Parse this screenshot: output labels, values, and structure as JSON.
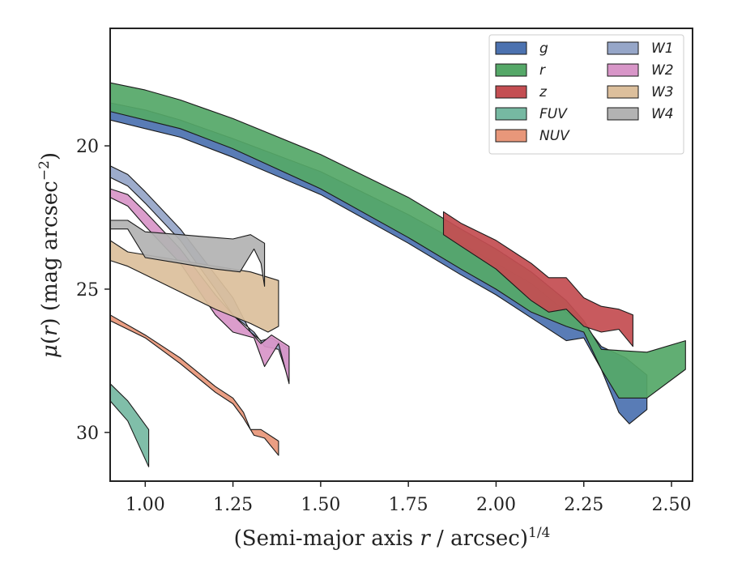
{
  "chart_data": {
    "type": "area",
    "xlabel": "(Semi-major axis r / arcsec)^{1/4}",
    "ylabel": "μ(r) (mag arcsec^{−2})",
    "xlim": [
      0.9,
      2.56
    ],
    "ylim": [
      31.7,
      15.9
    ],
    "y_inverted": true,
    "grid": false,
    "legend_placement": "top-right",
    "legend_columns": 2,
    "xticks": [
      "1.00",
      "1.25",
      "1.50",
      "1.75",
      "2.00",
      "2.25",
      "2.50"
    ],
    "xtick_values": [
      1.0,
      1.25,
      1.5,
      1.75,
      2.0,
      2.25,
      2.5
    ],
    "yticks": [
      "20",
      "25",
      "30"
    ],
    "ytick_values": [
      20,
      25,
      30
    ],
    "series": [
      {
        "name": "g",
        "color": "#4c72b0",
        "upper": [
          [
            0.9,
            18.5
          ],
          [
            1.0,
            18.75
          ],
          [
            1.1,
            19.1
          ],
          [
            1.25,
            19.75
          ],
          [
            1.5,
            20.9
          ],
          [
            1.75,
            22.4
          ],
          [
            1.9,
            23.4
          ],
          [
            2.0,
            24.1
          ],
          [
            2.1,
            24.8
          ],
          [
            2.2,
            25.8
          ],
          [
            2.25,
            26.2
          ],
          [
            2.3,
            27.0
          ],
          [
            2.37,
            27.4
          ],
          [
            2.43,
            28.0
          ]
        ],
        "lower": [
          [
            2.43,
            29.2
          ],
          [
            2.38,
            29.7
          ],
          [
            2.35,
            29.3
          ],
          [
            2.3,
            27.8
          ],
          [
            2.25,
            26.7
          ],
          [
            2.2,
            26.8
          ],
          [
            2.1,
            26.0
          ],
          [
            2.0,
            25.2
          ],
          [
            1.9,
            24.5
          ],
          [
            1.75,
            23.4
          ],
          [
            1.5,
            21.7
          ],
          [
            1.25,
            20.4
          ],
          [
            1.1,
            19.7
          ],
          [
            1.0,
            19.4
          ],
          [
            0.9,
            19.1
          ]
        ]
      },
      {
        "name": "r",
        "color": "#55a868",
        "upper": [
          [
            0.9,
            17.8
          ],
          [
            1.0,
            18.05
          ],
          [
            1.1,
            18.4
          ],
          [
            1.25,
            19.05
          ],
          [
            1.5,
            20.3
          ],
          [
            1.75,
            21.8
          ],
          [
            1.9,
            22.9
          ],
          [
            2.0,
            23.6
          ],
          [
            2.1,
            24.4
          ],
          [
            2.2,
            25.4
          ],
          [
            2.25,
            26.1
          ],
          [
            2.3,
            27.1
          ],
          [
            2.43,
            27.2
          ],
          [
            2.54,
            26.8
          ]
        ],
        "lower": [
          [
            2.54,
            27.8
          ],
          [
            2.43,
            28.8
          ],
          [
            2.35,
            28.8
          ],
          [
            2.3,
            27.8
          ],
          [
            2.25,
            26.5
          ],
          [
            2.2,
            26.3
          ],
          [
            2.1,
            25.8
          ],
          [
            2.0,
            25.0
          ],
          [
            1.9,
            24.3
          ],
          [
            1.75,
            23.2
          ],
          [
            1.5,
            21.5
          ],
          [
            1.25,
            20.1
          ],
          [
            1.1,
            19.4
          ],
          [
            1.0,
            19.1
          ],
          [
            0.9,
            18.8
          ]
        ]
      },
      {
        "name": "z",
        "color": "#c44e52",
        "upper": [
          [
            1.85,
            22.3
          ],
          [
            1.9,
            22.7
          ],
          [
            2.0,
            23.3
          ],
          [
            2.1,
            24.1
          ],
          [
            2.15,
            24.6
          ],
          [
            2.2,
            24.6
          ],
          [
            2.25,
            25.3
          ],
          [
            2.3,
            25.6
          ],
          [
            2.35,
            25.7
          ],
          [
            2.39,
            25.9
          ]
        ],
        "lower": [
          [
            2.39,
            27.0
          ],
          [
            2.35,
            26.4
          ],
          [
            2.3,
            26.5
          ],
          [
            2.25,
            26.3
          ],
          [
            2.2,
            25.7
          ],
          [
            2.15,
            25.8
          ],
          [
            2.1,
            25.4
          ],
          [
            2.0,
            24.3
          ],
          [
            1.9,
            23.5
          ],
          [
            1.85,
            23.1
          ]
        ]
      },
      {
        "name": "FUV",
        "color": "#76b9a2",
        "upper": [
          [
            0.9,
            28.3
          ],
          [
            0.95,
            28.9
          ],
          [
            1.01,
            29.9
          ]
        ],
        "lower": [
          [
            1.01,
            31.2
          ],
          [
            0.95,
            29.6
          ],
          [
            0.9,
            28.9
          ]
        ]
      },
      {
        "name": "NUV",
        "color": "#e8977a",
        "upper": [
          [
            0.9,
            25.9
          ],
          [
            1.0,
            26.6
          ],
          [
            1.1,
            27.4
          ],
          [
            1.2,
            28.4
          ],
          [
            1.25,
            28.8
          ],
          [
            1.28,
            29.3
          ],
          [
            1.3,
            29.9
          ],
          [
            1.33,
            29.9
          ],
          [
            1.38,
            30.3
          ]
        ],
        "lower": [
          [
            1.38,
            30.8
          ],
          [
            1.34,
            30.2
          ],
          [
            1.31,
            30.1
          ],
          [
            1.28,
            29.5
          ],
          [
            1.25,
            29.0
          ],
          [
            1.2,
            28.6
          ],
          [
            1.1,
            27.6
          ],
          [
            1.0,
            26.7
          ],
          [
            0.9,
            26.1
          ]
        ]
      },
      {
        "name": "W1",
        "color": "#96a6c8",
        "upper": [
          [
            0.9,
            20.7
          ],
          [
            0.95,
            21.0
          ],
          [
            1.0,
            21.6
          ],
          [
            1.1,
            22.9
          ],
          [
            1.2,
            24.5
          ],
          [
            1.25,
            25.3
          ],
          [
            1.3,
            26.5
          ],
          [
            1.33,
            26.8
          ],
          [
            1.36,
            26.7
          ],
          [
            1.41,
            27.1
          ]
        ],
        "lower": [
          [
            1.41,
            28.2
          ],
          [
            1.38,
            27.1
          ],
          [
            1.34,
            27.0
          ],
          [
            1.31,
            26.5
          ],
          [
            1.25,
            25.9
          ],
          [
            1.2,
            25.0
          ],
          [
            1.1,
            23.3
          ],
          [
            1.0,
            22.0
          ],
          [
            0.95,
            21.4
          ],
          [
            0.9,
            21.1
          ]
        ]
      },
      {
        "name": "W2",
        "color": "#d896c8",
        "upper": [
          [
            0.9,
            21.5
          ],
          [
            0.95,
            21.7
          ],
          [
            1.0,
            22.3
          ],
          [
            1.1,
            23.6
          ],
          [
            1.2,
            25.2
          ],
          [
            1.25,
            25.9
          ],
          [
            1.3,
            26.5
          ],
          [
            1.33,
            26.9
          ],
          [
            1.36,
            26.6
          ],
          [
            1.41,
            27.0
          ]
        ],
        "lower": [
          [
            1.41,
            28.3
          ],
          [
            1.38,
            26.9
          ],
          [
            1.34,
            27.7
          ],
          [
            1.31,
            26.7
          ],
          [
            1.25,
            26.5
          ],
          [
            1.2,
            25.9
          ],
          [
            1.1,
            24.1
          ],
          [
            1.0,
            22.8
          ],
          [
            0.95,
            22.1
          ],
          [
            0.9,
            21.8
          ]
        ]
      },
      {
        "name": "W3",
        "color": "#dcbf9c",
        "upper": [
          [
            0.9,
            23.3
          ],
          [
            0.95,
            23.7
          ],
          [
            1.0,
            23.8
          ],
          [
            1.1,
            24.0
          ],
          [
            1.2,
            24.2
          ],
          [
            1.3,
            24.4
          ],
          [
            1.38,
            24.7
          ]
        ],
        "lower": [
          [
            1.38,
            26.3
          ],
          [
            1.35,
            26.5
          ],
          [
            1.3,
            26.2
          ],
          [
            1.2,
            25.7
          ],
          [
            1.1,
            25.1
          ],
          [
            1.0,
            24.5
          ],
          [
            0.95,
            24.2
          ],
          [
            0.9,
            24.0
          ]
        ]
      },
      {
        "name": "W4",
        "color": "#b3b3b3",
        "upper": [
          [
            0.9,
            22.6
          ],
          [
            0.95,
            22.6
          ],
          [
            1.0,
            23.0
          ],
          [
            1.1,
            23.1
          ],
          [
            1.2,
            23.2
          ],
          [
            1.25,
            23.25
          ],
          [
            1.3,
            23.1
          ],
          [
            1.34,
            23.4
          ]
        ],
        "lower": [
          [
            1.34,
            24.9
          ],
          [
            1.33,
            24.1
          ],
          [
            1.31,
            23.6
          ],
          [
            1.27,
            24.4
          ],
          [
            1.2,
            24.3
          ],
          [
            1.1,
            24.1
          ],
          [
            1.0,
            23.9
          ],
          [
            0.95,
            22.9
          ],
          [
            0.9,
            22.9
          ]
        ]
      }
    ]
  }
}
